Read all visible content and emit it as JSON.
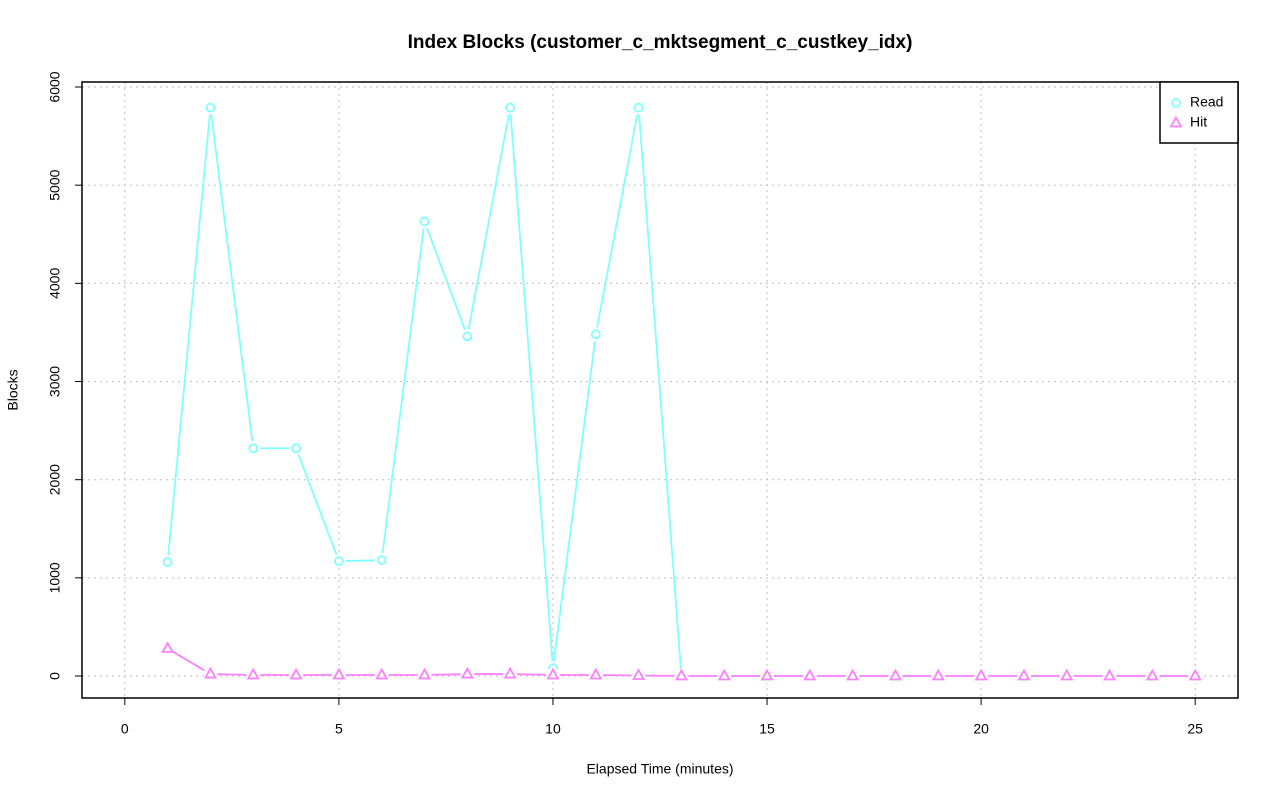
{
  "chart_data": {
    "type": "line",
    "title": "Index Blocks (customer_c_mktsegment_c_custkey_idx)",
    "x_label": "Elapsed Time (minutes)",
    "y_label": "Blocks",
    "x": [
      1,
      2,
      3,
      4,
      5,
      6,
      7,
      8,
      9,
      10,
      11,
      12,
      13,
      14,
      15,
      16,
      17,
      18,
      19,
      20,
      21,
      22,
      23,
      24,
      25
    ],
    "series": [
      {
        "name": "Read",
        "color": "#80ffff",
        "marker": "circle",
        "values": [
          1160,
          5790,
          2320,
          2320,
          1170,
          1180,
          4630,
          3460,
          5790,
          80,
          3480,
          5790,
          0,
          0,
          0,
          0,
          0,
          0,
          0,
          0,
          0,
          0,
          0,
          0,
          0
        ]
      },
      {
        "name": "Hit",
        "color": "#ff80ff",
        "marker": "triangle",
        "values": [
          280,
          20,
          10,
          10,
          10,
          10,
          10,
          20,
          20,
          10,
          10,
          5,
          0,
          0,
          0,
          0,
          0,
          0,
          0,
          0,
          0,
          0,
          0,
          0,
          0
        ]
      }
    ],
    "xlim": [
      -1,
      26
    ],
    "xticks": [
      0,
      5,
      10,
      15,
      20,
      25
    ],
    "ylim": [
      -224,
      6051
    ],
    "yticks": [
      0,
      1000,
      2000,
      3000,
      4000,
      5000,
      6000
    ],
    "grid": true,
    "legend": "top-right"
  }
}
